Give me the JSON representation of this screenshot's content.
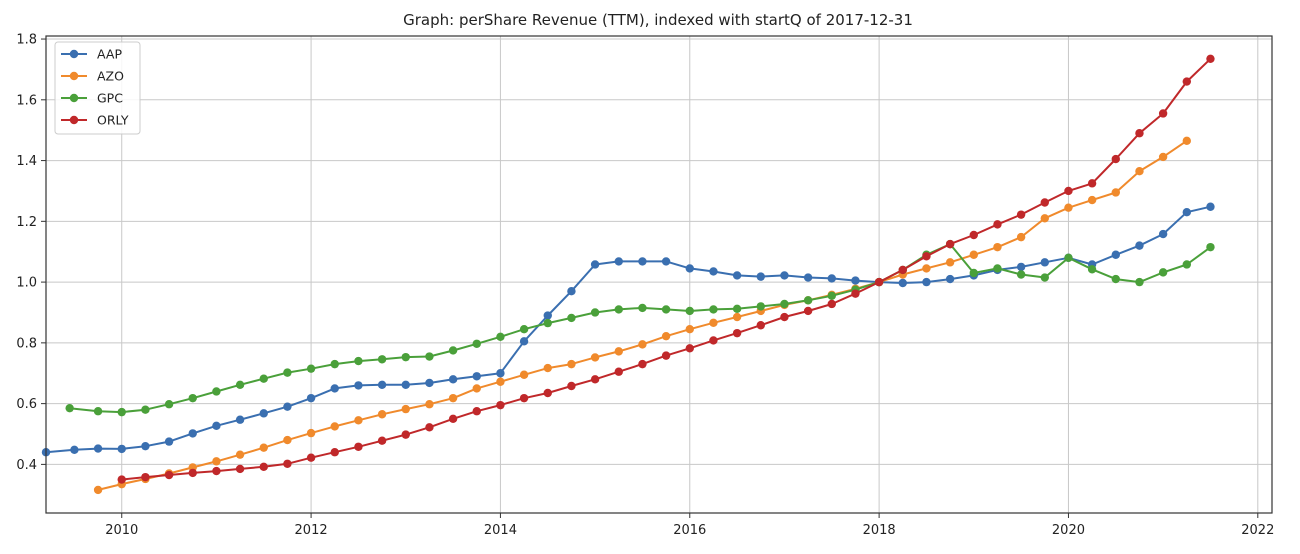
{
  "chart_data": {
    "type": "line",
    "title": "Graph: perShare Revenue (TTM), indexed with startQ of 2017-12-31",
    "xlabel": "",
    "ylabel": "",
    "xlim": [
      2009.2,
      2022.15
    ],
    "ylim": [
      0.24,
      1.81
    ],
    "xticks": [
      2010,
      2012,
      2014,
      2016,
      2018,
      2020,
      2022
    ],
    "yticks": [
      0.4,
      0.6,
      0.8,
      1.0,
      1.2,
      1.4,
      1.6,
      1.8
    ],
    "ytick_labels": [
      "0.4",
      "0.6",
      "0.8",
      "1.0",
      "1.2",
      "1.4",
      "1.6",
      "1.8"
    ],
    "grid": true,
    "legend_position": "top-left",
    "series": [
      {
        "name": "AAP",
        "color": "#3a6fb0",
        "points": [
          [
            2009.2,
            0.44
          ],
          [
            2009.5,
            0.448
          ],
          [
            2009.75,
            0.452
          ],
          [
            2010.0,
            0.451
          ],
          [
            2010.25,
            0.46
          ],
          [
            2010.5,
            0.475
          ],
          [
            2010.75,
            0.502
          ],
          [
            2011.0,
            0.527
          ],
          [
            2011.25,
            0.547
          ],
          [
            2011.5,
            0.568
          ],
          [
            2011.75,
            0.59
          ],
          [
            2012.0,
            0.618
          ],
          [
            2012.25,
            0.65
          ],
          [
            2012.5,
            0.66
          ],
          [
            2012.75,
            0.662
          ],
          [
            2013.0,
            0.662
          ],
          [
            2013.25,
            0.668
          ],
          [
            2013.5,
            0.68
          ],
          [
            2013.75,
            0.69
          ],
          [
            2014.0,
            0.7
          ],
          [
            2014.25,
            0.805
          ],
          [
            2014.5,
            0.89
          ],
          [
            2014.75,
            0.97
          ],
          [
            2015.0,
            1.058
          ],
          [
            2015.25,
            1.068
          ],
          [
            2015.5,
            1.068
          ],
          [
            2015.75,
            1.068
          ],
          [
            2016.0,
            1.045
          ],
          [
            2016.25,
            1.035
          ],
          [
            2016.5,
            1.022
          ],
          [
            2016.75,
            1.018
          ],
          [
            2017.0,
            1.022
          ],
          [
            2017.25,
            1.015
          ],
          [
            2017.5,
            1.012
          ],
          [
            2017.75,
            1.005
          ],
          [
            2018.0,
            1.0
          ],
          [
            2018.25,
            0.997
          ],
          [
            2018.5,
            1.0
          ],
          [
            2018.75,
            1.01
          ],
          [
            2019.0,
            1.022
          ],
          [
            2019.25,
            1.04
          ],
          [
            2019.5,
            1.05
          ],
          [
            2019.75,
            1.065
          ],
          [
            2020.0,
            1.08
          ],
          [
            2020.25,
            1.058
          ],
          [
            2020.5,
            1.09
          ],
          [
            2020.75,
            1.12
          ],
          [
            2021.0,
            1.158
          ],
          [
            2021.25,
            1.23
          ],
          [
            2021.5,
            1.248
          ]
        ]
      },
      {
        "name": "AZO",
        "color": "#f08a2c",
        "points": [
          [
            2009.75,
            0.316
          ],
          [
            2010.0,
            0.335
          ],
          [
            2010.25,
            0.352
          ],
          [
            2010.5,
            0.37
          ],
          [
            2010.75,
            0.39
          ],
          [
            2011.0,
            0.41
          ],
          [
            2011.25,
            0.432
          ],
          [
            2011.5,
            0.455
          ],
          [
            2011.75,
            0.48
          ],
          [
            2012.0,
            0.503
          ],
          [
            2012.25,
            0.525
          ],
          [
            2012.5,
            0.545
          ],
          [
            2012.75,
            0.565
          ],
          [
            2013.0,
            0.582
          ],
          [
            2013.25,
            0.598
          ],
          [
            2013.5,
            0.618
          ],
          [
            2013.75,
            0.65
          ],
          [
            2014.0,
            0.672
          ],
          [
            2014.25,
            0.695
          ],
          [
            2014.5,
            0.717
          ],
          [
            2014.75,
            0.73
          ],
          [
            2015.0,
            0.752
          ],
          [
            2015.25,
            0.772
          ],
          [
            2015.5,
            0.795
          ],
          [
            2015.75,
            0.822
          ],
          [
            2016.0,
            0.845
          ],
          [
            2016.25,
            0.866
          ],
          [
            2016.5,
            0.885
          ],
          [
            2016.75,
            0.905
          ],
          [
            2017.0,
            0.925
          ],
          [
            2017.25,
            0.94
          ],
          [
            2017.5,
            0.958
          ],
          [
            2017.75,
            0.978
          ],
          [
            2018.0,
            1.0
          ],
          [
            2018.25,
            1.025
          ],
          [
            2018.5,
            1.045
          ],
          [
            2018.75,
            1.065
          ],
          [
            2019.0,
            1.09
          ],
          [
            2019.25,
            1.115
          ],
          [
            2019.5,
            1.148
          ],
          [
            2019.75,
            1.21
          ],
          [
            2020.0,
            1.245
          ],
          [
            2020.25,
            1.27
          ],
          [
            2020.5,
            1.295
          ],
          [
            2020.75,
            1.365
          ],
          [
            2021.0,
            1.412
          ],
          [
            2021.25,
            1.465
          ]
        ]
      },
      {
        "name": "GPC",
        "color": "#4aa03a",
        "points": [
          [
            2009.45,
            0.585
          ],
          [
            2009.75,
            0.575
          ],
          [
            2010.0,
            0.572
          ],
          [
            2010.25,
            0.58
          ],
          [
            2010.5,
            0.598
          ],
          [
            2010.75,
            0.618
          ],
          [
            2011.0,
            0.64
          ],
          [
            2011.25,
            0.662
          ],
          [
            2011.5,
            0.682
          ],
          [
            2011.75,
            0.702
          ],
          [
            2012.0,
            0.715
          ],
          [
            2012.25,
            0.73
          ],
          [
            2012.5,
            0.74
          ],
          [
            2012.75,
            0.746
          ],
          [
            2013.0,
            0.753
          ],
          [
            2013.25,
            0.755
          ],
          [
            2013.5,
            0.775
          ],
          [
            2013.75,
            0.797
          ],
          [
            2014.0,
            0.82
          ],
          [
            2014.25,
            0.845
          ],
          [
            2014.5,
            0.865
          ],
          [
            2014.75,
            0.882
          ],
          [
            2015.0,
            0.9
          ],
          [
            2015.25,
            0.91
          ],
          [
            2015.5,
            0.915
          ],
          [
            2015.75,
            0.91
          ],
          [
            2016.0,
            0.905
          ],
          [
            2016.25,
            0.91
          ],
          [
            2016.5,
            0.912
          ],
          [
            2016.75,
            0.92
          ],
          [
            2017.0,
            0.928
          ],
          [
            2017.25,
            0.94
          ],
          [
            2017.5,
            0.955
          ],
          [
            2017.75,
            0.975
          ],
          [
            2018.0,
            1.0
          ],
          [
            2018.25,
            1.04
          ],
          [
            2018.5,
            1.09
          ],
          [
            2018.75,
            1.125
          ],
          [
            2019.0,
            1.03
          ],
          [
            2019.25,
            1.045
          ],
          [
            2019.5,
            1.025
          ],
          [
            2019.75,
            1.015
          ],
          [
            2020.0,
            1.08
          ],
          [
            2020.25,
            1.042
          ],
          [
            2020.5,
            1.01
          ],
          [
            2020.75,
            1.0
          ],
          [
            2021.0,
            1.032
          ],
          [
            2021.25,
            1.058
          ],
          [
            2021.5,
            1.115
          ]
        ]
      },
      {
        "name": "ORLY",
        "color": "#c0282a",
        "points": [
          [
            2010.0,
            0.35
          ],
          [
            2010.25,
            0.358
          ],
          [
            2010.5,
            0.365
          ],
          [
            2010.75,
            0.372
          ],
          [
            2011.0,
            0.378
          ],
          [
            2011.25,
            0.385
          ],
          [
            2011.5,
            0.392
          ],
          [
            2011.75,
            0.402
          ],
          [
            2012.0,
            0.422
          ],
          [
            2012.25,
            0.44
          ],
          [
            2012.5,
            0.458
          ],
          [
            2012.75,
            0.478
          ],
          [
            2013.0,
            0.498
          ],
          [
            2013.25,
            0.522
          ],
          [
            2013.5,
            0.55
          ],
          [
            2013.75,
            0.575
          ],
          [
            2014.0,
            0.595
          ],
          [
            2014.25,
            0.618
          ],
          [
            2014.5,
            0.635
          ],
          [
            2014.75,
            0.658
          ],
          [
            2015.0,
            0.68
          ],
          [
            2015.25,
            0.705
          ],
          [
            2015.5,
            0.73
          ],
          [
            2015.75,
            0.758
          ],
          [
            2016.0,
            0.782
          ],
          [
            2016.25,
            0.808
          ],
          [
            2016.5,
            0.832
          ],
          [
            2016.75,
            0.858
          ],
          [
            2017.0,
            0.885
          ],
          [
            2017.25,
            0.905
          ],
          [
            2017.5,
            0.928
          ],
          [
            2017.75,
            0.962
          ],
          [
            2018.0,
            1.0
          ],
          [
            2018.25,
            1.04
          ],
          [
            2018.5,
            1.085
          ],
          [
            2018.75,
            1.125
          ],
          [
            2019.0,
            1.155
          ],
          [
            2019.25,
            1.19
          ],
          [
            2019.5,
            1.222
          ],
          [
            2019.75,
            1.262
          ],
          [
            2020.0,
            1.3
          ],
          [
            2020.25,
            1.325
          ],
          [
            2020.5,
            1.405
          ],
          [
            2020.75,
            1.49
          ],
          [
            2021.0,
            1.555
          ],
          [
            2021.25,
            1.66
          ],
          [
            2021.5,
            1.735
          ]
        ]
      }
    ]
  }
}
